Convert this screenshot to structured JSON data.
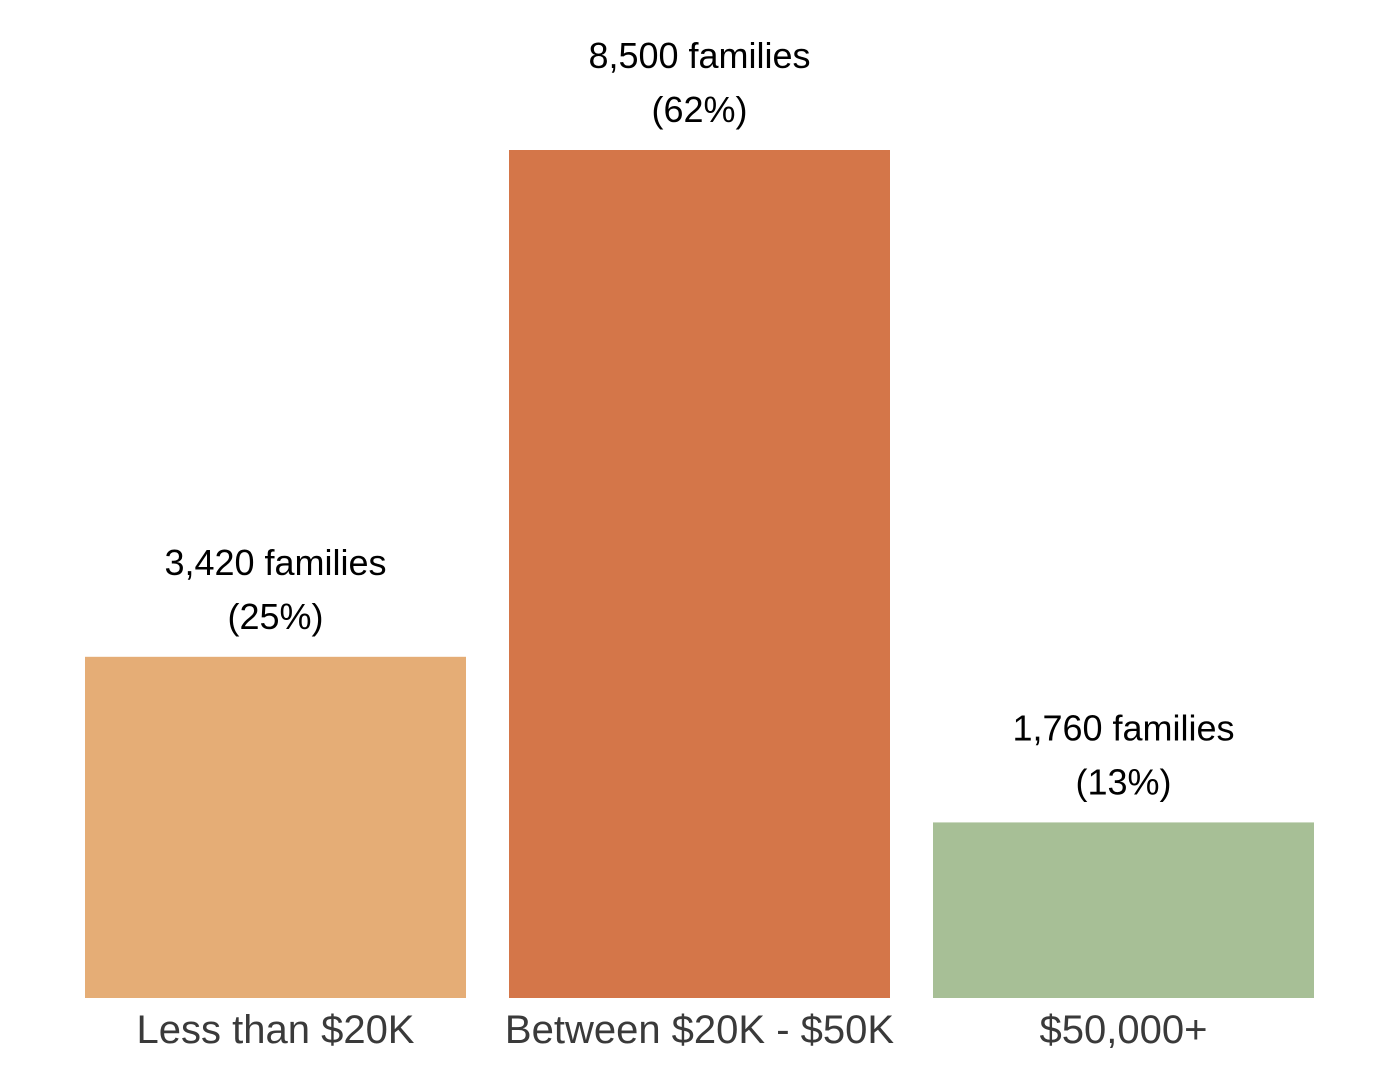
{
  "chart_data": {
    "type": "bar",
    "title": "",
    "xlabel": "",
    "ylabel": "",
    "categories": [
      "Less than $20K",
      "Between $20K - $50K",
      "$50,000+"
    ],
    "values": [
      3420,
      8500,
      1760
    ],
    "value_labels": [
      "3,420 families",
      "8,500 families",
      "1,760 families"
    ],
    "percent_labels": [
      "(25%)",
      "(62%)",
      "(13%)"
    ],
    "colors": [
      "#E5AD76",
      "#D47649",
      "#A7BF96"
    ],
    "ylim": [
      0,
      8500
    ],
    "grid": false,
    "legend": "none"
  }
}
